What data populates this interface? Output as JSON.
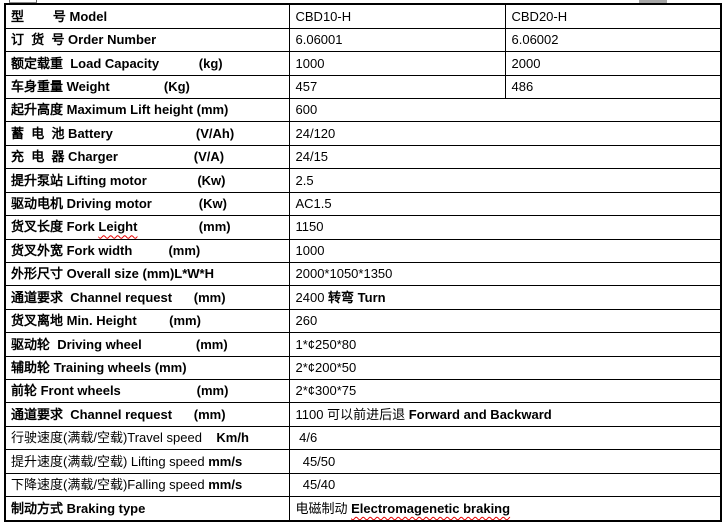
{
  "colors": {
    "table_border": "#000000",
    "spellcheck_squiggle": "#e60000",
    "artifact_gray": "#a6a6a6"
  },
  "table": {
    "rows": [
      {
        "label": [
          {
            "t": "型        号 Model",
            "b": 1
          }
        ],
        "values": [
          [
            {
              "t": "CBD10-H",
              "b": 0
            }
          ],
          [
            {
              "t": "CBD20-H",
              "b": 0
            }
          ]
        ]
      },
      {
        "label": [
          {
            "t": "订  货  号 Order Number",
            "b": 1
          }
        ],
        "values": [
          [
            {
              "t": "6.06001",
              "b": 0
            }
          ],
          [
            {
              "t": "6.06002",
              "b": 0
            }
          ]
        ]
      },
      {
        "label": [
          {
            "t": "额定载重  Load Capacity           (kg)",
            "b": 1
          }
        ],
        "values": [
          [
            {
              "t": "1000",
              "b": 0
            }
          ],
          [
            {
              "t": "2000",
              "b": 0
            }
          ]
        ]
      },
      {
        "label": [
          {
            "t": "车身重量 Weight               (Kg)",
            "b": 1
          }
        ],
        "values": [
          [
            {
              "t": "457",
              "b": 0
            }
          ],
          [
            {
              "t": "486",
              "b": 0
            }
          ]
        ]
      },
      {
        "label": [
          {
            "t": "起升高度 Maximum Lift height (mm)",
            "b": 1
          }
        ],
        "values": [
          [
            {
              "t": "600",
              "b": 0
            }
          ]
        ]
      },
      {
        "label": [
          {
            "t": "蓄  电  池 Battery                       (V/Ah)",
            "b": 1
          }
        ],
        "values": [
          [
            {
              "t": "24/120",
              "b": 0
            }
          ]
        ]
      },
      {
        "label": [
          {
            "t": "充  电  器 Charger                     (V/A)",
            "b": 1
          }
        ],
        "values": [
          [
            {
              "t": "24/15",
              "b": 0
            }
          ]
        ]
      },
      {
        "label": [
          {
            "t": "提升泵站 Lifting motor              (Kw)",
            "b": 1
          }
        ],
        "values": [
          [
            {
              "t": "2.5",
              "b": 0
            }
          ]
        ]
      },
      {
        "label": [
          {
            "t": "驱动电机 Driving motor             (Kw)",
            "b": 1
          }
        ],
        "values": [
          [
            {
              "t": "AC1.5",
              "b": 0
            }
          ]
        ]
      },
      {
        "label": [
          {
            "t": "货叉长度 Fork ",
            "b": 1
          },
          {
            "t": "Leight",
            "b": 1,
            "sq": 1
          },
          {
            "t": "                 (mm)",
            "b": 1
          }
        ],
        "values": [
          [
            {
              "t": "1150",
              "b": 0
            }
          ]
        ]
      },
      {
        "label": [
          {
            "t": "货叉外宽 Fork width          (mm)",
            "b": 1
          }
        ],
        "values": [
          [
            {
              "t": "1000",
              "b": 0
            }
          ]
        ]
      },
      {
        "label": [
          {
            "t": "外形尺寸 Overall size (mm)L*W*H",
            "b": 1
          }
        ],
        "values": [
          [
            {
              "t": "2000*1050*1350",
              "b": 0
            }
          ]
        ]
      },
      {
        "label": [
          {
            "t": "通道要求  Channel request      (mm)",
            "b": 1
          }
        ],
        "values": [
          [
            {
              "t": "2400 ",
              "b": 0
            },
            {
              "t": "转弯 Turn",
              "b": 1
            }
          ]
        ]
      },
      {
        "label": [
          {
            "t": "货叉离地 Min. Height         (mm)",
            "b": 1
          }
        ],
        "values": [
          [
            {
              "t": "260",
              "b": 0
            }
          ]
        ]
      },
      {
        "label": [
          {
            "t": "驱动轮  Driving wheel               (mm)",
            "b": 1
          }
        ],
        "values": [
          [
            {
              "t": "1*¢250*80",
              "b": 0
            }
          ]
        ]
      },
      {
        "label": [
          {
            "t": "辅助轮 Training wheels (mm)",
            "b": 1
          }
        ],
        "values": [
          [
            {
              "t": "2*¢200*50",
              "b": 0
            }
          ]
        ]
      },
      {
        "label": [
          {
            "t": "前轮 Front wheels                     (mm)",
            "b": 1
          }
        ],
        "values": [
          [
            {
              "t": "2*¢300*75",
              "b": 0
            }
          ]
        ]
      },
      {
        "label": [
          {
            "t": "通道要求  Channel request      (mm)",
            "b": 1
          }
        ],
        "values": [
          [
            {
              "t": "1100 可以前进后退 ",
              "b": 0
            },
            {
              "t": "Forward and Backward",
              "b": 1
            }
          ]
        ]
      },
      {
        "label": [
          {
            "t": "行驶速度(满载/空载)Travel speed    ",
            "b": 0
          },
          {
            "t": "Km/h",
            "b": 1
          }
        ],
        "values": [
          [
            {
              "t": " 4/6",
              "b": 0
            }
          ]
        ]
      },
      {
        "label": [
          {
            "t": "提升速度(满载/空载) Lifting speed ",
            "b": 0
          },
          {
            "t": "mm/s",
            "b": 1
          }
        ],
        "values": [
          [
            {
              "t": "  45/50",
              "b": 0
            }
          ]
        ]
      },
      {
        "label": [
          {
            "t": "下降速度(满载/空载)Falling speed ",
            "b": 0
          },
          {
            "t": "mm/s",
            "b": 1
          }
        ],
        "values": [
          [
            {
              "t": "  45/40",
              "b": 0
            }
          ]
        ]
      },
      {
        "label": [
          {
            "t": "制动方式 Braking type",
            "b": 1
          }
        ],
        "values": [
          [
            {
              "t": "电磁制动 ",
              "b": 0
            },
            {
              "t": "Electromagenetic braking",
              "b": 1,
              "sq": 1
            }
          ]
        ]
      }
    ]
  }
}
